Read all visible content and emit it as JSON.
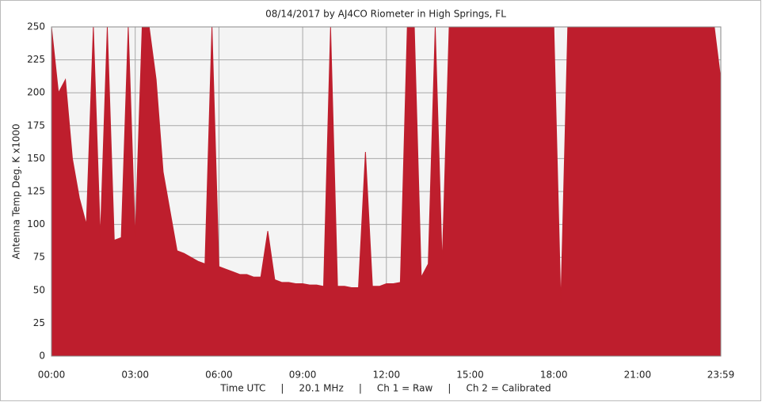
{
  "chart_data": {
    "type": "area",
    "title": "08/14/2017  by  AJ4CO Riometer  in  High Springs, FL",
    "ylabel": "Antenna Temp Deg. K x1000",
    "footer": "Time UTC     |     20.1 MHz     |     Ch 1 = Raw     |     Ch 2 = Calibrated",
    "x": [
      0,
      0.25,
      0.5,
      0.75,
      1,
      1.25,
      1.5,
      1.75,
      2,
      2.25,
      2.5,
      2.75,
      3,
      3.25,
      3.5,
      3.75,
      4,
      4.25,
      4.5,
      4.75,
      5,
      5.25,
      5.5,
      5.75,
      6,
      6.25,
      6.5,
      6.75,
      7,
      7.25,
      7.5,
      7.75,
      8,
      8.25,
      8.5,
      8.75,
      9,
      9.25,
      9.5,
      9.75,
      10,
      10.25,
      10.5,
      10.75,
      11,
      11.25,
      11.5,
      11.75,
      12,
      12.25,
      12.5,
      12.75,
      13,
      13.25,
      13.5,
      13.75,
      14,
      14.25,
      14.5,
      14.75,
      15,
      15.25,
      15.5,
      15.75,
      16,
      16.25,
      16.5,
      16.75,
      17,
      17.25,
      17.5,
      17.75,
      18,
      18.25,
      18.5,
      18.75,
      19,
      19.25,
      19.5,
      19.75,
      20,
      20.25,
      20.5,
      20.75,
      21,
      21.25,
      21.5,
      21.75,
      22,
      22.25,
      22.5,
      22.75,
      23,
      23.25,
      23.5,
      23.75,
      23.983
    ],
    "series": [
      {
        "color": "#be1e2d",
        "values": [
          250,
          200,
          210,
          150,
          120,
          100,
          250,
          90,
          250,
          88,
          90,
          250,
          90,
          250,
          250,
          210,
          140,
          110,
          80,
          78,
          75,
          72,
          70,
          250,
          68,
          66,
          64,
          62,
          62,
          60,
          60,
          95,
          58,
          56,
          56,
          55,
          55,
          54,
          54,
          53,
          250,
          53,
          53,
          52,
          52,
          155,
          53,
          53,
          55,
          55,
          56,
          250,
          250,
          60,
          70,
          250,
          70,
          250,
          250,
          250,
          250,
          250,
          250,
          250,
          250,
          250,
          250,
          250,
          250,
          250,
          250,
          250,
          250,
          40,
          250,
          250,
          250,
          250,
          250,
          250,
          250,
          250,
          250,
          250,
          250,
          250,
          250,
          250,
          250,
          250,
          250,
          250,
          250,
          250,
          250,
          250,
          210
        ]
      }
    ],
    "xlim": [
      0,
      23.983
    ],
    "xticks": [
      {
        "value": 0,
        "label": "00:00"
      },
      {
        "value": 3,
        "label": "03:00"
      },
      {
        "value": 6,
        "label": "06:00"
      },
      {
        "value": 9,
        "label": "09:00"
      },
      {
        "value": 12,
        "label": "12:00"
      },
      {
        "value": 15,
        "label": "15:00"
      },
      {
        "value": 18,
        "label": "18:00"
      },
      {
        "value": 21,
        "label": "21:00"
      },
      {
        "value": 23.983,
        "label": "23:59"
      }
    ],
    "ylim": [
      0,
      250
    ],
    "yticks": [
      0,
      25,
      50,
      75,
      100,
      125,
      150,
      175,
      200,
      225,
      250
    ],
    "grid": true
  }
}
